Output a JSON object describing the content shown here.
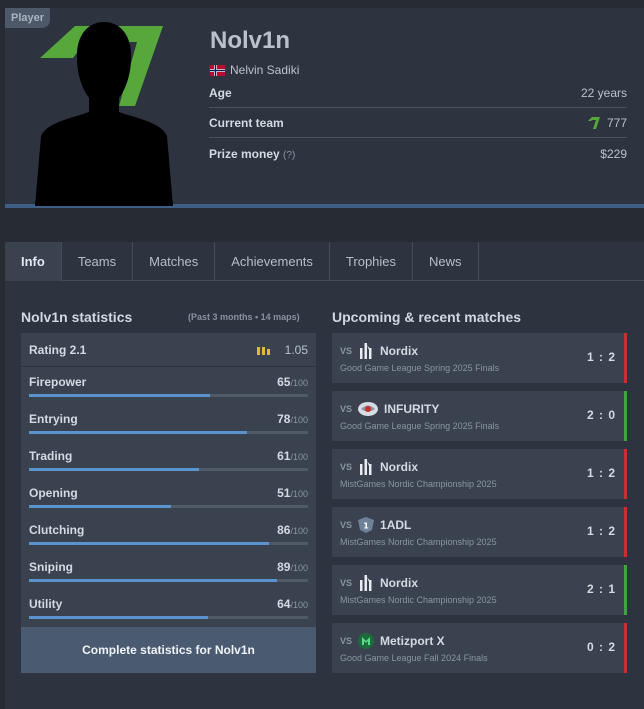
{
  "profile": {
    "badge": "Player",
    "nickname": "Nolv1n",
    "real_name": "Nelvin Sadiki",
    "flag": "norway-flag-icon",
    "team_logo": "team-logo-icon",
    "age_label": "Age",
    "age_value": "22 years",
    "team_label": "Current team",
    "team_value": "777",
    "prize_label": "Prize money",
    "prize_hint": "(?)",
    "prize_value": "$229"
  },
  "tabs": [
    "Info",
    "Teams",
    "Matches",
    "Achievements",
    "Trophies",
    "News"
  ],
  "stats": {
    "title": "Nolv1n statistics",
    "subtitle": "(Past 3 months • 14 maps)",
    "rating_label": "Rating 2.1",
    "rating_value": "1.05",
    "max_label": "/100",
    "items": [
      {
        "label": "Firepower",
        "value": "65",
        "pct": 65
      },
      {
        "label": "Entrying",
        "value": "78",
        "pct": 78
      },
      {
        "label": "Trading",
        "value": "61",
        "pct": 61
      },
      {
        "label": "Opening",
        "value": "51",
        "pct": 51
      },
      {
        "label": "Clutching",
        "value": "86",
        "pct": 86
      },
      {
        "label": "Sniping",
        "value": "89",
        "pct": 89
      },
      {
        "label": "Utility",
        "value": "64",
        "pct": 64
      }
    ],
    "button": "Complete statistics for Nolv1n"
  },
  "matches": {
    "title": "Upcoming & recent matches",
    "vs_label": "VS",
    "items": [
      {
        "opponent": "Nordix",
        "event": "Good Game League Spring 2025 Finals",
        "score": "1 : 2",
        "result": "loss",
        "logo": "nordix-logo-icon"
      },
      {
        "opponent": "INFURITY",
        "event": "Good Game League Spring 2025 Finals",
        "score": "2 : 0",
        "result": "win",
        "logo": "infurity-logo-icon"
      },
      {
        "opponent": "Nordix",
        "event": "MistGames Nordic Championship 2025",
        "score": "1 : 2",
        "result": "loss",
        "logo": "nordix-logo-icon"
      },
      {
        "opponent": "1ADL",
        "event": "MistGames Nordic Championship 2025",
        "score": "1 : 2",
        "result": "loss",
        "logo": "1adl-logo-icon"
      },
      {
        "opponent": "Nordix",
        "event": "MistGames Nordic Championship 2025",
        "score": "2 : 1",
        "result": "win",
        "logo": "nordix-logo-icon"
      },
      {
        "opponent": "Metizport X",
        "event": "Good Game League Fall 2024 Finals",
        "score": "0 : 2",
        "result": "loss",
        "logo": "metizport-logo-icon"
      }
    ]
  },
  "colors": {
    "win": "#3fa33f",
    "loss": "#c9302c",
    "bar": "#5b93cf",
    "team_green": "#56a83a"
  }
}
